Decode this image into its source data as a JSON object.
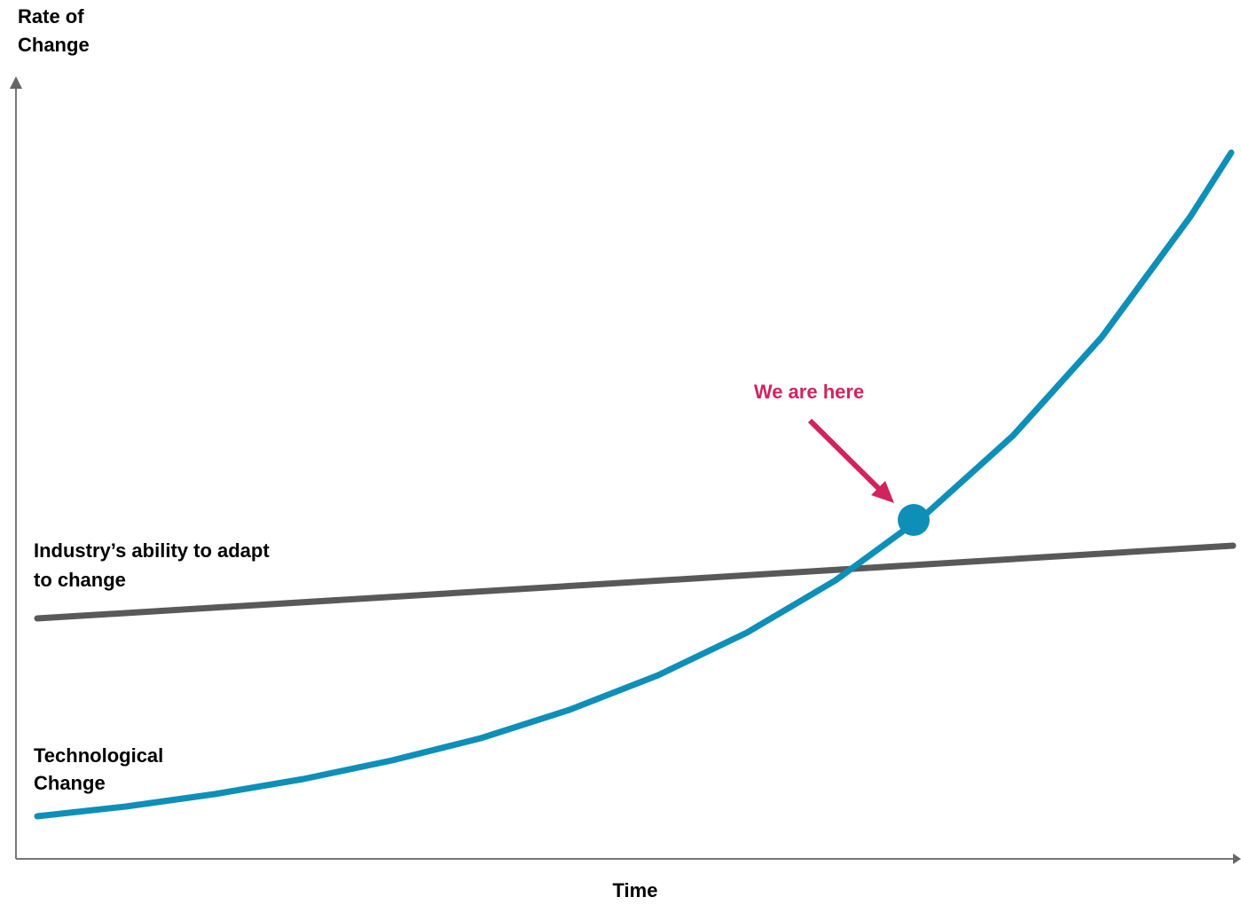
{
  "y_axis_label": [
    "Rate of",
    "Change"
  ],
  "x_axis_label": "Time",
  "annotation": "We are here",
  "series_labels": {
    "industry": [
      "Industry’s ability to adapt",
      "to change"
    ],
    "technology": [
      "Technological",
      "Change"
    ]
  }
}
